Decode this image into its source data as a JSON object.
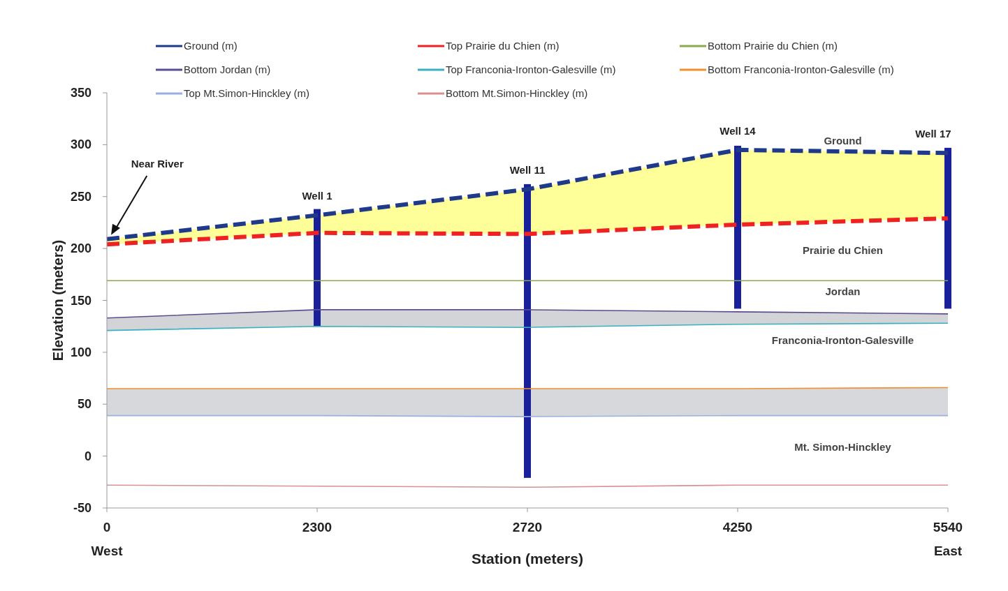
{
  "chart_data": {
    "type": "line",
    "xlabel": "Station (meters)",
    "ylabel": "Elevation (meters)",
    "categories": [
      "0\nWest",
      "2300",
      "2720",
      "4250",
      "5540\nEast"
    ],
    "ylim": [
      -50,
      350
    ],
    "yticks": [
      -50,
      0,
      50,
      100,
      150,
      200,
      250,
      300,
      350
    ],
    "legend": "top",
    "grid": false,
    "series": [
      {
        "name": "Ground (m)",
        "color": "#1f3a8a",
        "line_style": "dashed",
        "values": [
          209,
          232,
          257,
          295,
          292
        ],
        "lower": [
          204,
          215,
          214,
          223,
          229
        ],
        "upper": [
          209,
          232,
          257,
          295,
          292
        ]
      },
      {
        "name": "Top Prairie du Chien (m)",
        "color": "#ee2222",
        "line_style": "dashed",
        "values": [
          204,
          215,
          214,
          223,
          229
        ]
      },
      {
        "name": "Bottom Prairie du Chien (m)",
        "color": "#8aaa50",
        "values": [
          169,
          169,
          169,
          169,
          169
        ]
      },
      {
        "name": "Bottom Jordan (m)",
        "color": "#5c4d8e",
        "values": [
          133,
          141,
          141,
          139,
          137
        ],
        "lower": [
          121,
          125,
          124,
          127,
          128
        ],
        "upper": [
          133,
          141,
          141,
          139,
          137
        ]
      },
      {
        "name": "Top Franconia-Ironton-Galesville (m)",
        "color": "#3bb0c0",
        "values": [
          121,
          125,
          124,
          127,
          128
        ]
      },
      {
        "name": "Bottom Franconia-Ironton-Galesville (m)",
        "color": "#f09030",
        "values": [
          65,
          65,
          65,
          65,
          66
        ]
      },
      {
        "name": "Top Mt.Simon-Hinckley (m)",
        "color": "#9ab0e0",
        "values": [
          39,
          39,
          38,
          39,
          39
        ],
        "lower": [
          39,
          39,
          38,
          39,
          39
        ],
        "upper": [
          65,
          65,
          65,
          65,
          66
        ]
      },
      {
        "name": "Bottom Mt.Simon-Hinckley (m)",
        "color": "#d89090",
        "values": [
          -28,
          -29,
          -30,
          -28,
          -28
        ]
      },
      {
        "type": "bar",
        "color": "#1a1f9a",
        "base": [
          null,
          125,
          -21,
          142,
          142
        ],
        "values": [
          null,
          113,
          283,
          157,
          155
        ]
      }
    ],
    "annotations": [
      "Near River",
      "Well 1",
      "Well 11",
      "Well 14",
      "Well 17",
      "Ground",
      "Prairie du Chien",
      "Jordan",
      "Franconia-Ironton-Galesville",
      "Mt. Simon-Hinckley"
    ]
  }
}
